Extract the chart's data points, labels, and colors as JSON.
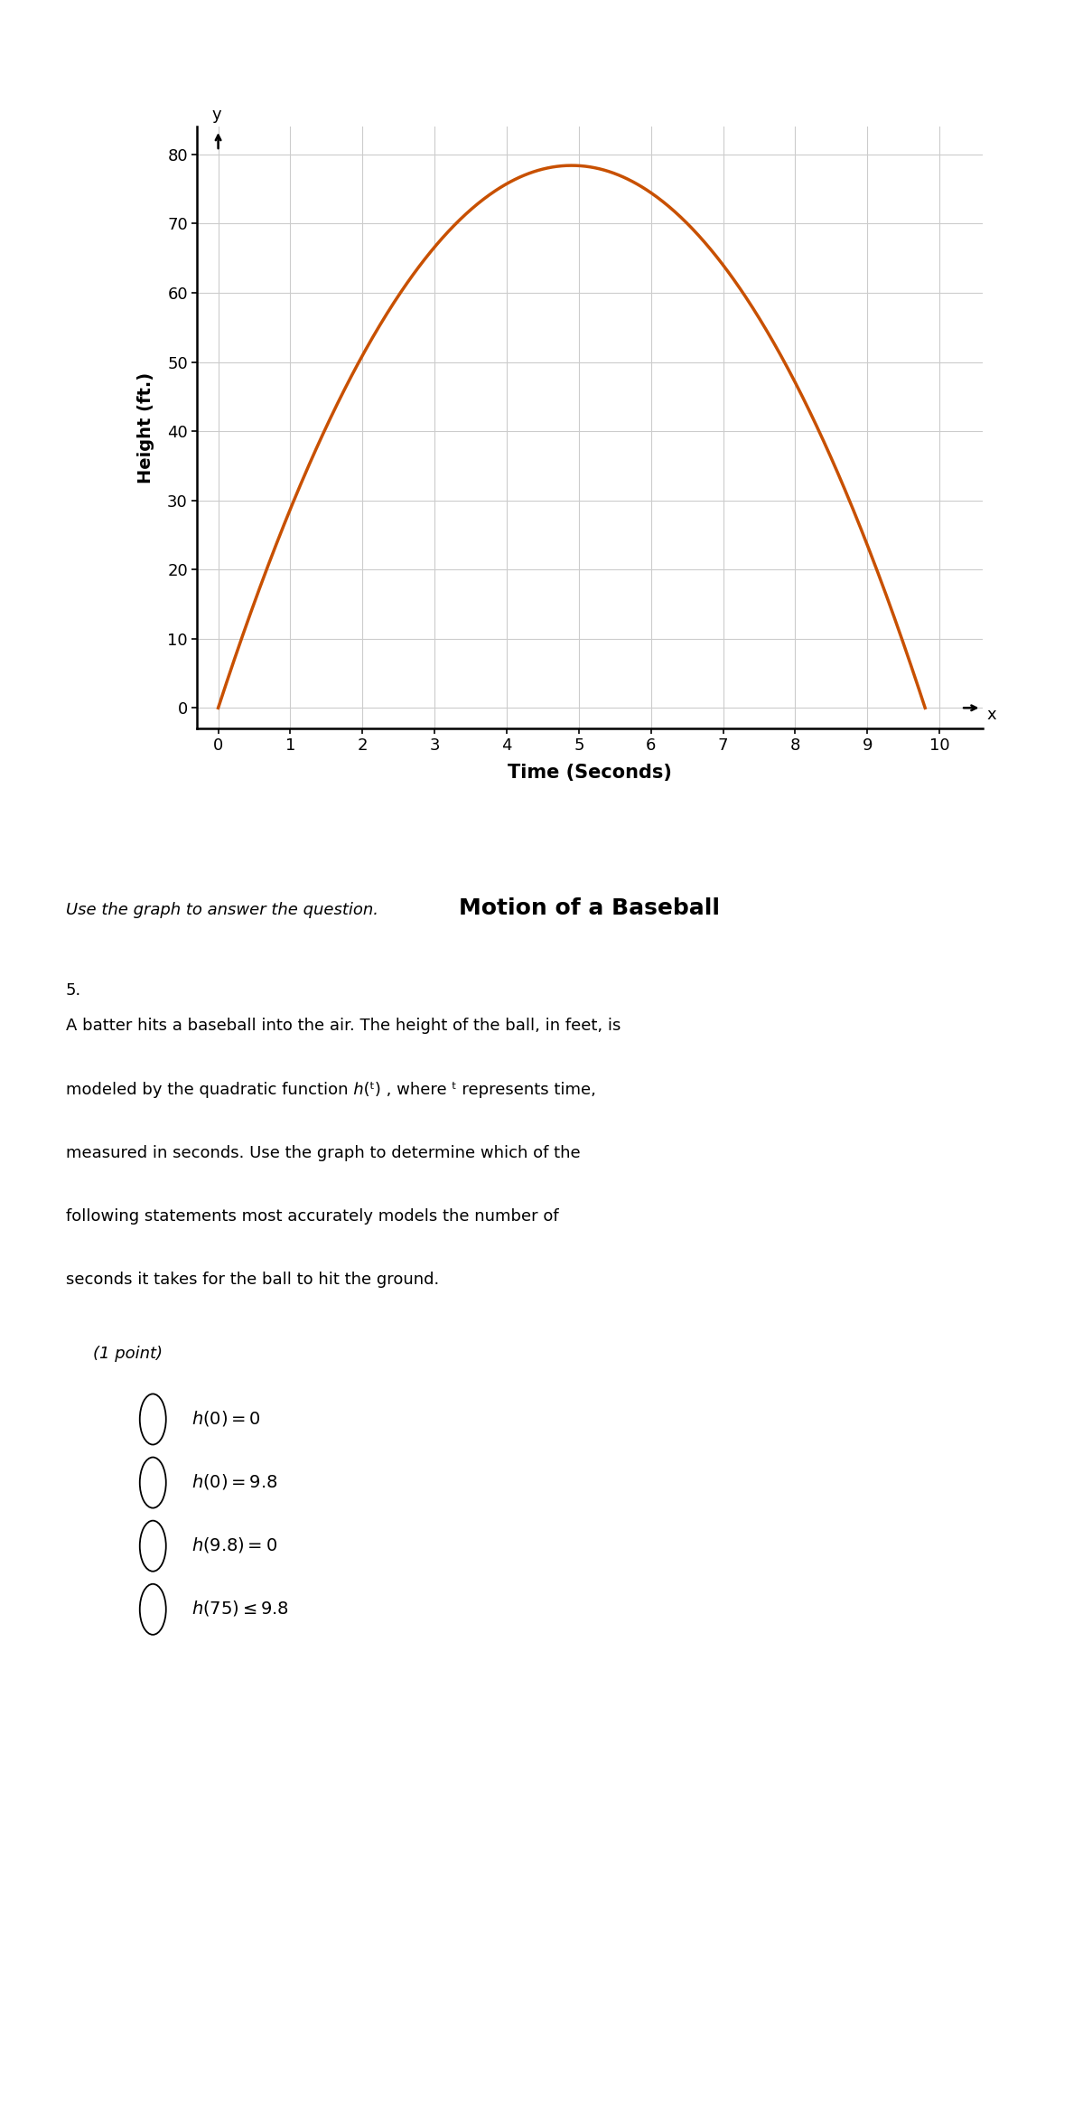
{
  "curve_color": "#C85000",
  "curve_linewidth": 2.5,
  "xlim": [
    -0.3,
    10.6
  ],
  "ylim": [
    -3,
    84
  ],
  "xticks": [
    0,
    1,
    2,
    3,
    4,
    5,
    6,
    7,
    8,
    9,
    10
  ],
  "yticks": [
    0,
    10,
    20,
    30,
    40,
    50,
    60,
    70,
    80
  ],
  "xlabel": "Time (Seconds)",
  "ylabel": "Height (ft.)",
  "graph_title": "Motion of a Baseball",
  "y_axis_label": "y",
  "x_axis_label": "x",
  "quadratic_a": -3.2653,
  "quadratic_b": 31.9996,
  "quadratic_c": 0.0,
  "t_start": 0.0,
  "t_end": 9.8,
  "background_color": "#ffffff",
  "grid_color": "#cccccc",
  "grid_linewidth": 0.8,
  "question_text": "Use the graph to answer the question.",
  "question_number": "5.",
  "question_points": "(1 point)",
  "fig_width": 12.09,
  "fig_height": 23.37,
  "dpi": 100
}
